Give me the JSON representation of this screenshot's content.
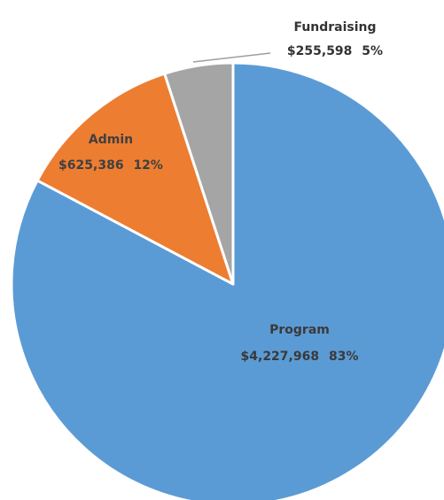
{
  "chart_data": {
    "type": "pie",
    "start_angle_deg": 0,
    "direction": "clockwise",
    "slices": [
      {
        "name": "Program",
        "value": 4227968,
        "value_label": "$4,227,968",
        "percent_label": "83%",
        "color": "#5b9bd5",
        "label_color": "#3a3a3a"
      },
      {
        "name": "Admin",
        "value": 625386,
        "value_label": "$625,386",
        "percent_label": "12%",
        "color": "#ed7d31",
        "label_color": "#404040"
      },
      {
        "name": "Fundraising",
        "value": 255598,
        "value_label": "$255,598",
        "percent_label": "5%",
        "color": "#a5a5a5",
        "label_color": "#333333"
      }
    ]
  }
}
